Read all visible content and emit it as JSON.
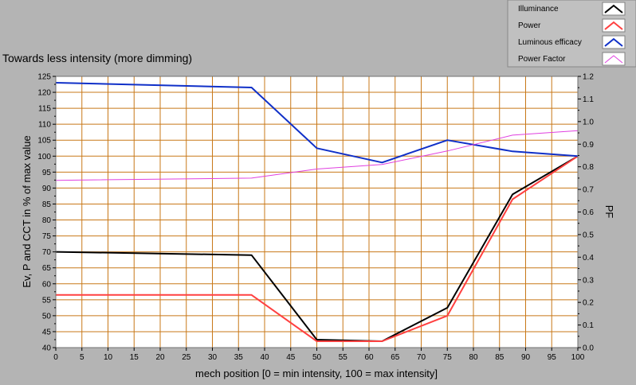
{
  "chart_data": {
    "type": "line",
    "title": "Towards less intensity (more dimming)",
    "xlabel": "mech position [0 = min intensity, 100 = max intensity]",
    "ylabel": "Ev, P and CCT in % of max value",
    "y2label": "PF",
    "xlim": [
      0,
      100
    ],
    "ylim": [
      40,
      125
    ],
    "y2lim": [
      0.0,
      1.2
    ],
    "x_ticks": [
      "0",
      "5",
      "10",
      "15",
      "20",
      "25",
      "30",
      "35",
      "40",
      "45",
      "50",
      "55",
      "60",
      "65",
      "70",
      "75",
      "80",
      "85",
      "90",
      "95",
      "100"
    ],
    "y_ticks": [
      "40",
      "45",
      "50",
      "55",
      "60",
      "65",
      "70",
      "75",
      "80",
      "85",
      "90",
      "95",
      "100",
      "105",
      "110",
      "115",
      "120",
      "125"
    ],
    "y2_ticks": [
      "0.0",
      "0.1",
      "0.2",
      "0.3",
      "0.4",
      "0.5",
      "0.6",
      "0.7",
      "0.8",
      "0.9",
      "1.0",
      "1.1",
      "1.2"
    ],
    "grid": true,
    "legend_position": "top-right",
    "x": [
      0,
      37.5,
      50,
      62.5,
      75,
      87.5,
      100
    ],
    "series": [
      {
        "name": "Illuminance",
        "color": "#000000",
        "axis": "left",
        "values": [
          70,
          69,
          42.5,
          42,
          52.5,
          88,
          100
        ]
      },
      {
        "name": "Power",
        "color": "#ff4040",
        "axis": "left",
        "values": [
          56.5,
          56.5,
          42,
          42,
          50,
          86.5,
          100
        ]
      },
      {
        "name": "Luminous efficacy",
        "color": "#1030c8",
        "axis": "left",
        "values": [
          123,
          121.5,
          102.5,
          98,
          105,
          101.5,
          100
        ]
      },
      {
        "name": "Power Factor",
        "color": "#e040e0",
        "axis": "right",
        "values": [
          0.74,
          0.75,
          0.79,
          0.81,
          0.87,
          0.94,
          0.96
        ]
      }
    ]
  }
}
